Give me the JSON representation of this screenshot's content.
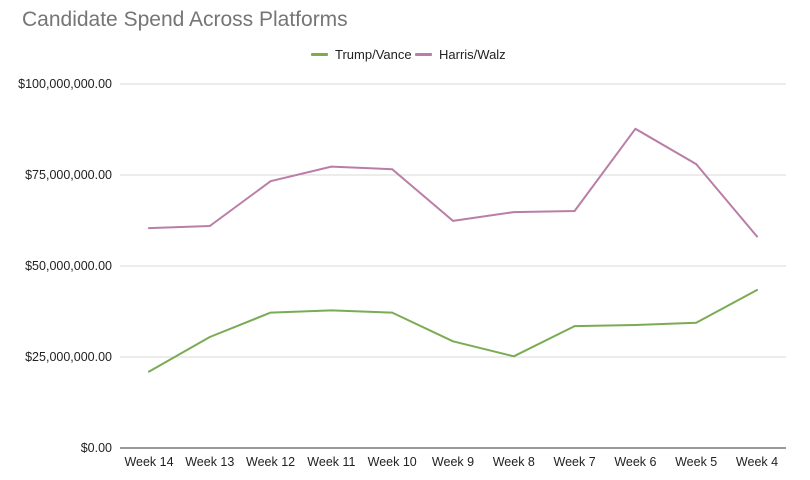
{
  "chart_data": {
    "type": "line",
    "title": "Candidate Spend Across Platforms",
    "xlabel": "",
    "ylabel": "",
    "categories": [
      "Week 14",
      "Week 13",
      "Week 12",
      "Week 11",
      "Week 10",
      "Week 9",
      "Week 8",
      "Week 7",
      "Week 6",
      "Week 5",
      "Week 4"
    ],
    "series": [
      {
        "name": "Trump/Vance",
        "color": "#7aab55",
        "values": [
          21000000,
          30500000,
          37200000,
          37800000,
          37200000,
          29300000,
          25200000,
          33500000,
          33800000,
          34400000,
          43400000
        ]
      },
      {
        "name": "Harris/Walz",
        "color": "#b97ea7",
        "values": [
          60400000,
          61000000,
          73300000,
          77300000,
          76600000,
          62400000,
          64800000,
          65100000,
          87700000,
          78000000,
          58100000
        ]
      }
    ],
    "ylim": [
      0,
      100000000
    ],
    "y_ticks": [
      0,
      25000000,
      50000000,
      75000000,
      100000000
    ],
    "y_tick_labels": [
      "$0.00",
      "$25,000,000.00",
      "$50,000,000.00",
      "$75,000,000.00",
      "$100,000,000.00"
    ],
    "grid": true,
    "legend_position": "top-center"
  }
}
